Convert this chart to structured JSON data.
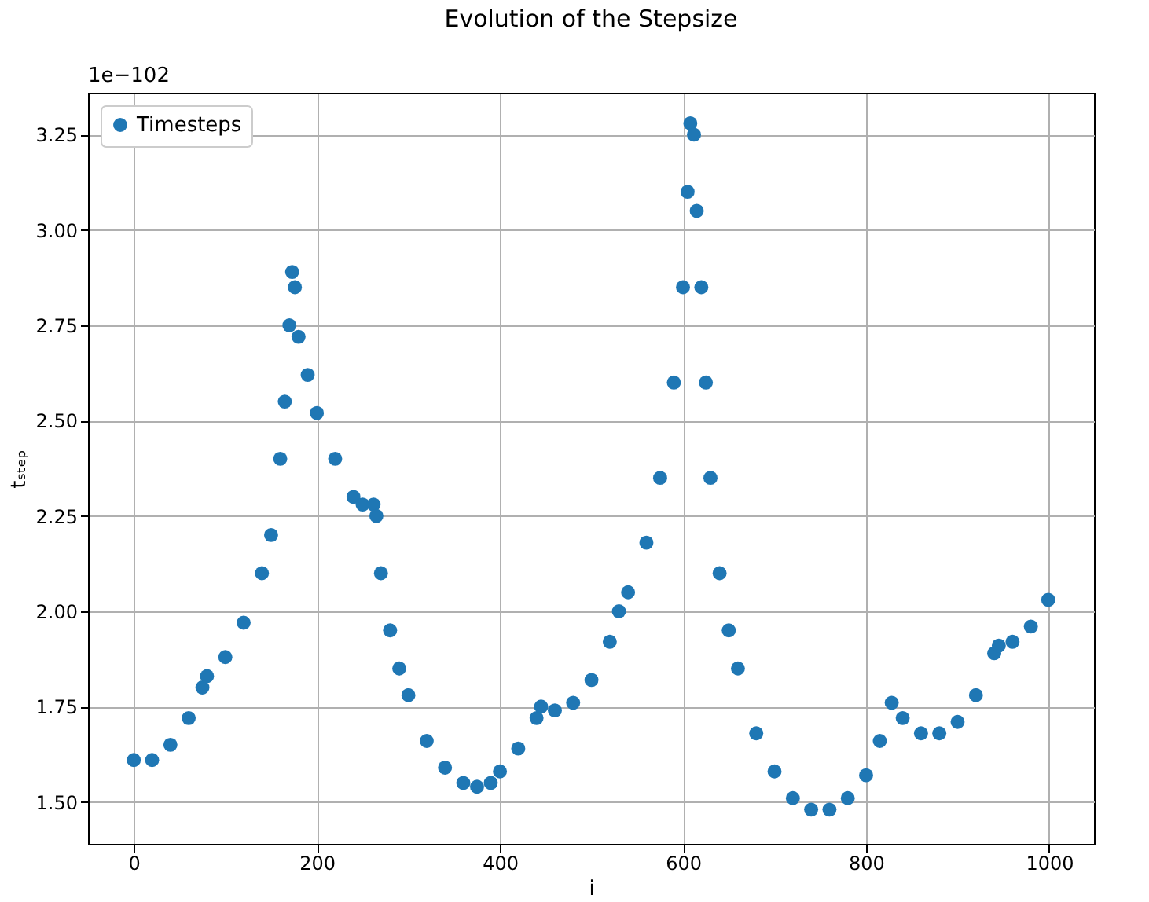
{
  "chart_data": {
    "type": "scatter",
    "title": "Evolution of the Stepsize",
    "xlabel": "i",
    "ylabel": "tₛₜₑₚ",
    "annotations": [
      "1e−102"
    ],
    "x": [
      0,
      20,
      40,
      60,
      75,
      80,
      100,
      120,
      140,
      150,
      160,
      165,
      170,
      173,
      176,
      180,
      190,
      200,
      220,
      240,
      250,
      262,
      265,
      270,
      280,
      290,
      300,
      320,
      340,
      360,
      375,
      390,
      400,
      420,
      440,
      445,
      460,
      480,
      500,
      520,
      530,
      540,
      560,
      575,
      590,
      600,
      605,
      608,
      612,
      615,
      620,
      625,
      630,
      640,
      650,
      660,
      680,
      700,
      720,
      740,
      760,
      780,
      800,
      815,
      828,
      840,
      860,
      880,
      900,
      920,
      940,
      945,
      960,
      980,
      999
    ],
    "series": [
      {
        "name": "Timesteps",
        "color": "#1f77b4",
        "values": [
          1.61,
          1.61,
          1.65,
          1.72,
          1.8,
          1.83,
          1.88,
          1.97,
          2.1,
          2.2,
          2.4,
          2.55,
          2.75,
          2.89,
          2.85,
          2.72,
          2.62,
          2.52,
          2.4,
          2.3,
          2.28,
          2.28,
          2.25,
          2.1,
          1.95,
          1.85,
          1.78,
          1.66,
          1.59,
          1.55,
          1.54,
          1.55,
          1.58,
          1.64,
          1.72,
          1.75,
          1.74,
          1.76,
          1.82,
          1.92,
          2.0,
          2.05,
          2.18,
          2.35,
          2.6,
          2.85,
          3.1,
          3.28,
          3.25,
          3.05,
          2.85,
          2.6,
          2.35,
          2.1,
          1.95,
          1.85,
          1.68,
          1.58,
          1.51,
          1.48,
          1.48,
          1.51,
          1.57,
          1.66,
          1.76,
          1.72,
          1.68,
          1.68,
          1.71,
          1.78,
          1.89,
          1.91,
          1.92,
          1.96,
          2.03
        ]
      }
    ],
    "xlim": [
      -50,
      1049
    ],
    "ylim": [
      1.39,
      3.36
    ],
    "xticks": [
      0,
      200,
      400,
      600,
      800,
      1000
    ],
    "yticks": [
      {
        "value": 1.5,
        "label": "1.50"
      },
      1.75,
      {
        "value": 2.0,
        "label": "2.00"
      },
      2.25,
      {
        "value": 2.5,
        "label": "2.50"
      },
      2.75,
      {
        "value": 3.0,
        "label": "3.00"
      },
      3.25
    ],
    "grid": true,
    "legend": "top left",
    "marker": "circle"
  }
}
